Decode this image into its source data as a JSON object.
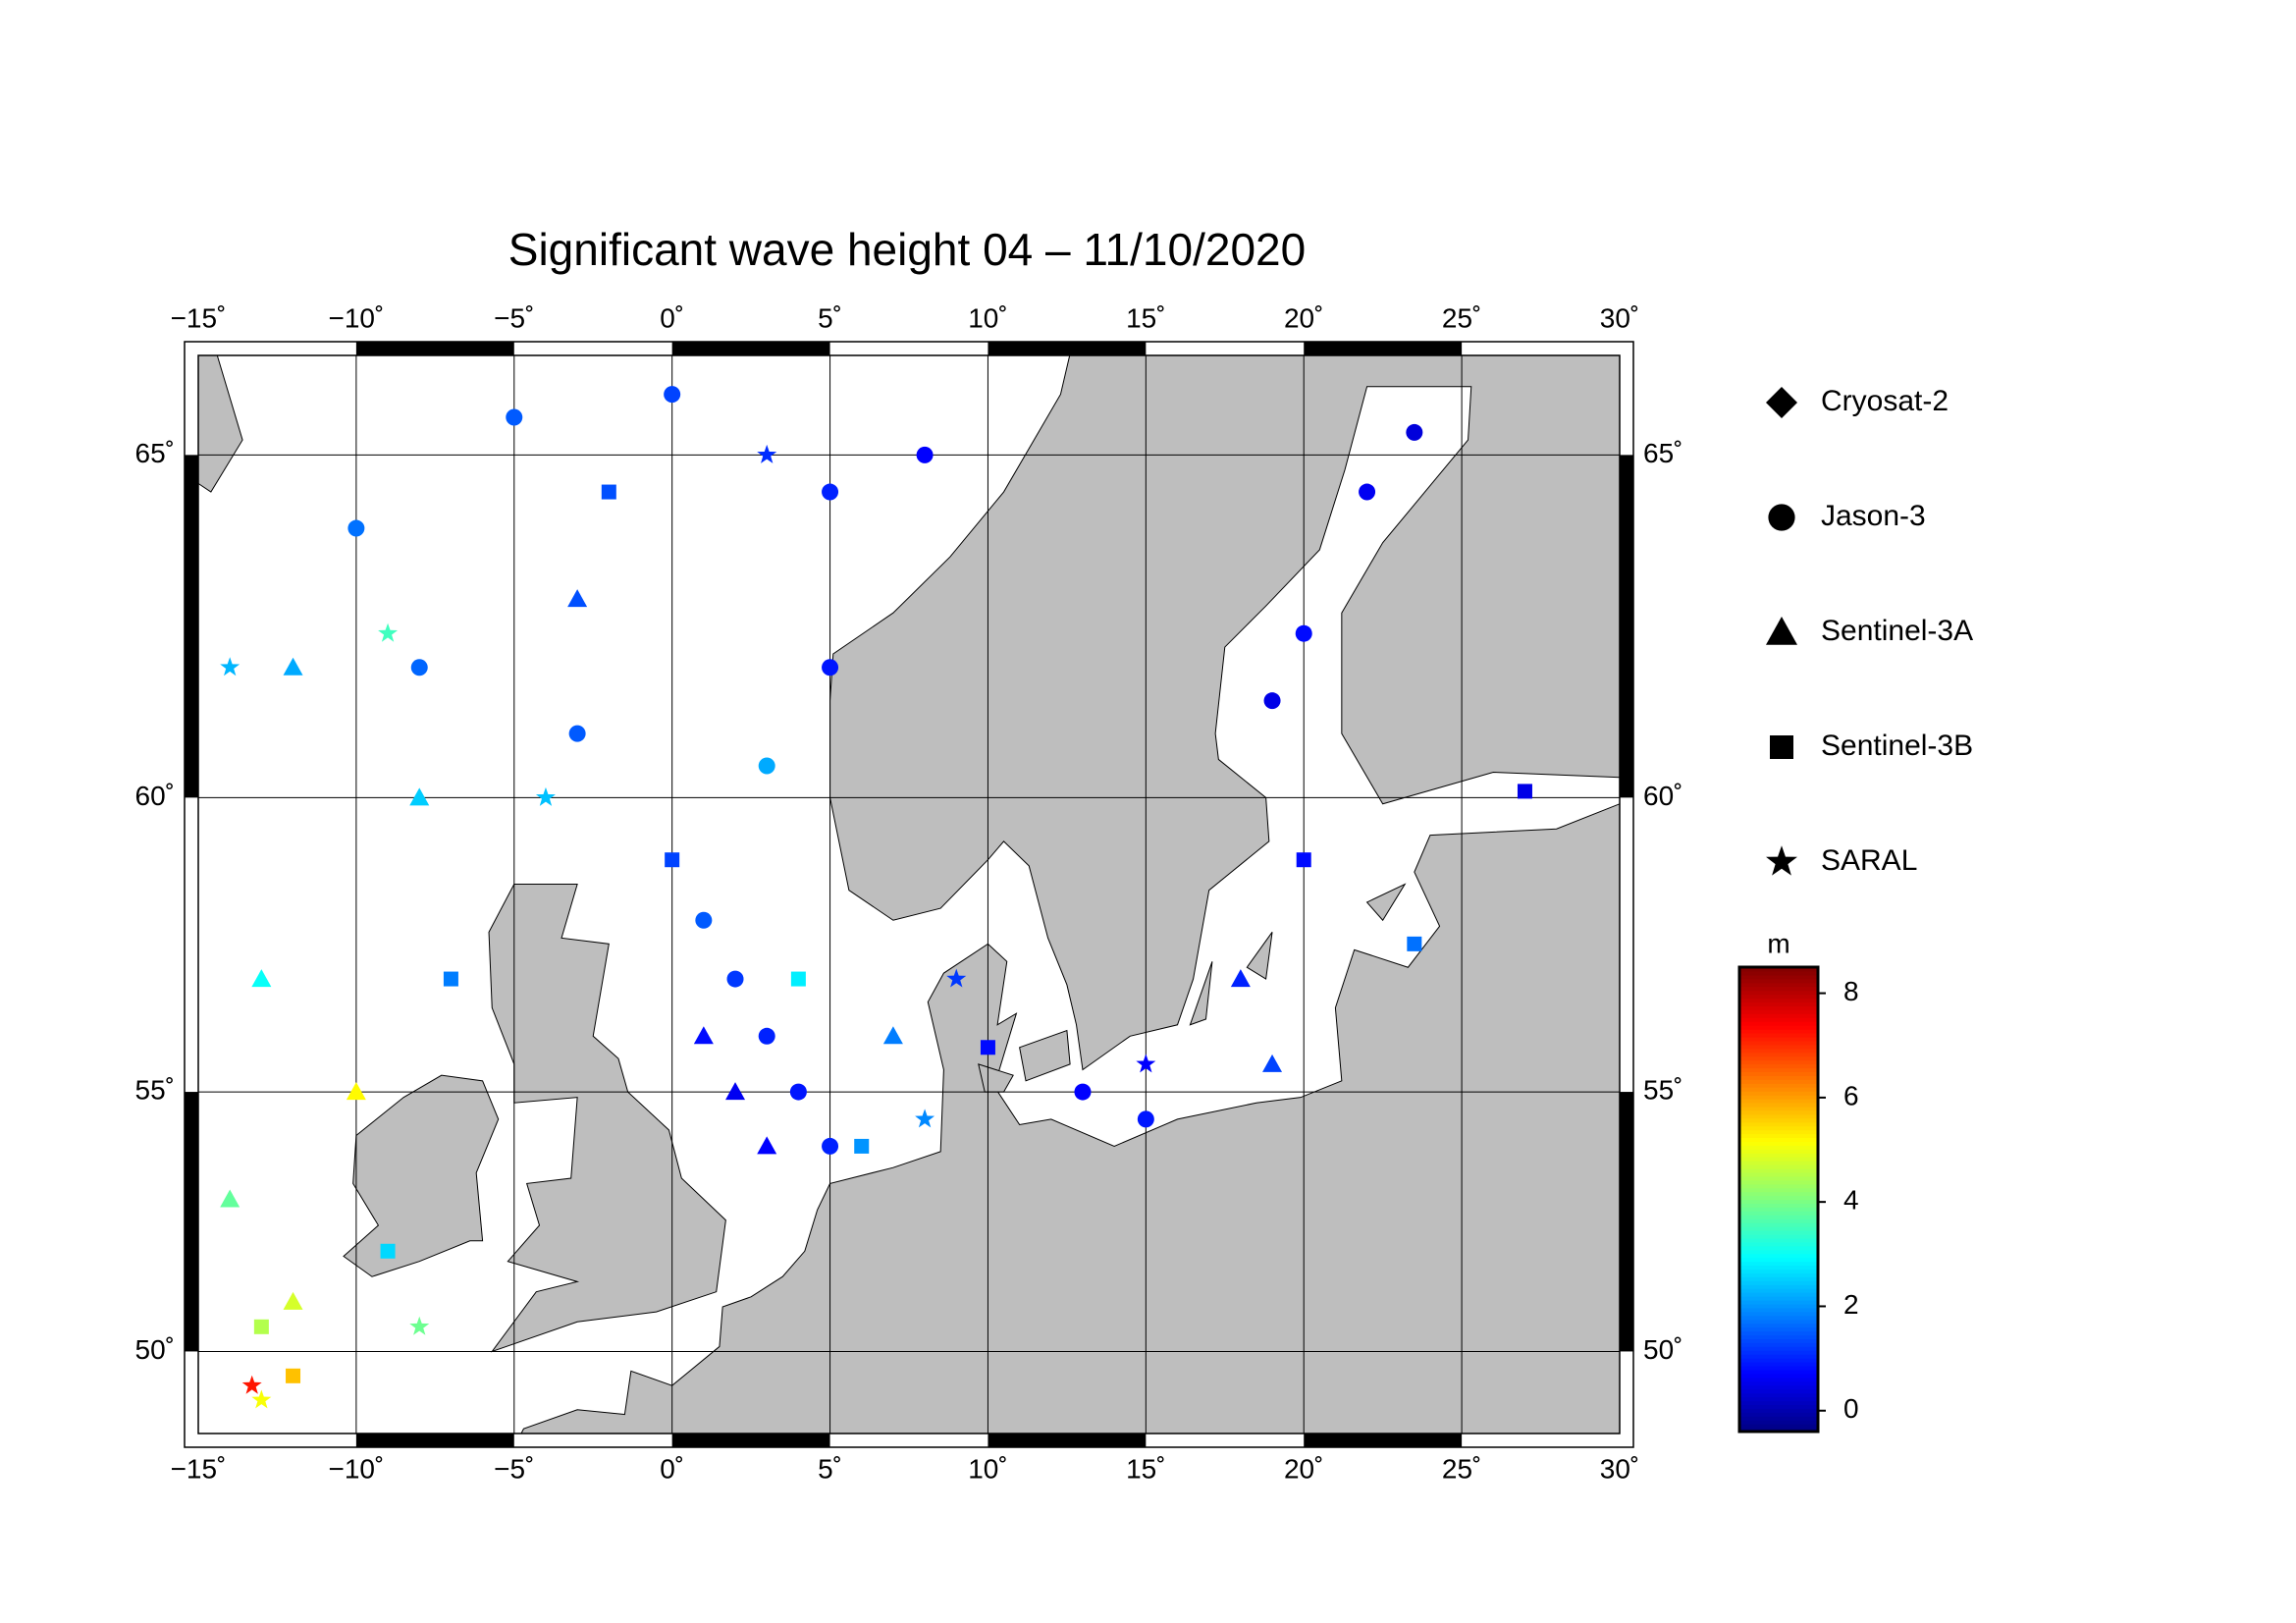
{
  "chart_data": {
    "type": "map",
    "title": "Significant wave height 04 – 11/10/2020",
    "projection": "mercator",
    "xlim": [
      -15,
      30
    ],
    "ylim": [
      48.3,
      66.3
    ],
    "xticks": [
      {
        "value": -15,
        "label": "−15˚"
      },
      {
        "value": -10,
        "label": "−10˚"
      },
      {
        "value": -5,
        "label": "−5˚"
      },
      {
        "value": 0,
        "label": "0˚"
      },
      {
        "value": 5,
        "label": "5˚"
      },
      {
        "value": 10,
        "label": "10˚"
      },
      {
        "value": 15,
        "label": "15˚"
      },
      {
        "value": 20,
        "label": "20˚"
      },
      {
        "value": 25,
        "label": "25˚"
      },
      {
        "value": 30,
        "label": "30˚"
      }
    ],
    "yticks": [
      {
        "value": 50,
        "label": "50˚"
      },
      {
        "value": 55,
        "label": "55˚"
      },
      {
        "value": 60,
        "label": "60˚"
      },
      {
        "value": 65,
        "label": "65˚"
      }
    ],
    "grid": true,
    "colorbar": {
      "label": "m",
      "clim": [
        -0.4,
        8.5
      ],
      "ticks": [
        0,
        2,
        4,
        6,
        8
      ],
      "colormap": "jet"
    },
    "series": [
      {
        "name": "Cryosat-2",
        "marker": "diamond",
        "x": [],
        "y": [],
        "values": []
      },
      {
        "name": "Jason-3",
        "marker": "circle",
        "x": [
          1,
          2,
          3,
          4,
          5,
          -5,
          0,
          5,
          8,
          -10,
          -8,
          -3,
          3,
          5,
          22,
          20,
          19,
          23.5,
          15,
          13
        ],
        "y": [
          58,
          57,
          56,
          55,
          54,
          65.5,
          65.8,
          64.5,
          65,
          64,
          62,
          61,
          60.5,
          62,
          64.5,
          62.5,
          61.5,
          65.3,
          54.5,
          55
        ],
        "values": [
          1.5,
          1.2,
          1.0,
          0.9,
          1.0,
          1.5,
          1.3,
          1.0,
          0.7,
          1.7,
          1.6,
          1.5,
          2.2,
          0.9,
          0.6,
          0.8,
          0.5,
          0.4,
          0.9,
          0.7
        ]
      },
      {
        "name": "Sentinel-3A",
        "marker": "triangle",
        "x": [
          -14,
          -12,
          -10,
          -13,
          -8,
          1,
          2,
          3,
          7,
          18,
          19,
          -3,
          -12
        ],
        "y": [
          53,
          51,
          55,
          57,
          60,
          56,
          55,
          54,
          56,
          57,
          55.5,
          63,
          62
        ],
        "values": [
          3.8,
          4.8,
          5.2,
          3.0,
          2.5,
          0.8,
          0.6,
          0.7,
          1.8,
          1.0,
          1.3,
          1.4,
          2.2
        ]
      },
      {
        "name": "Sentinel-3B",
        "marker": "square",
        "x": [
          -12,
          -13,
          -9,
          -7,
          0,
          4,
          6,
          10,
          20,
          23.5,
          27,
          -2
        ],
        "y": [
          49.5,
          50.5,
          52,
          57,
          59,
          57,
          54,
          55.8,
          59,
          57.6,
          60.1,
          64.5
        ],
        "values": [
          5.7,
          4.5,
          2.6,
          1.8,
          1.3,
          2.8,
          2.0,
          0.8,
          0.8,
          1.7,
          0.5,
          1.4
        ]
      },
      {
        "name": "SARAL",
        "marker": "star",
        "x": [
          -13.3,
          -13,
          -8,
          -14,
          -9,
          3,
          8,
          15,
          -4,
          9
        ],
        "y": [
          49.3,
          49,
          50.5,
          62,
          62.5,
          65,
          54.5,
          55.5,
          60,
          57
        ],
        "values": [
          7.2,
          5.1,
          3.9,
          2.3,
          3.5,
          1.1,
          1.9,
          0.7,
          2.4,
          1.2
        ]
      }
    ]
  }
}
